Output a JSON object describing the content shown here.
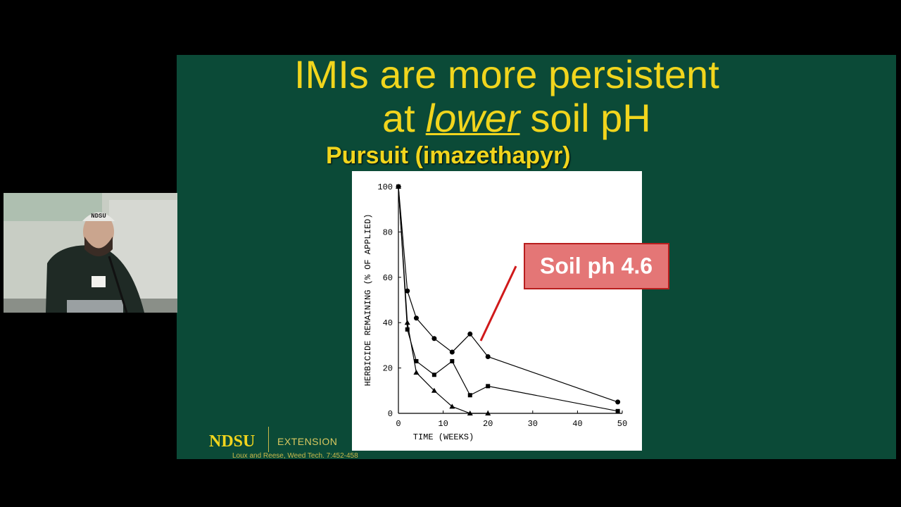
{
  "slide": {
    "title_line1": "IMIs are more persistent",
    "title_line2_a": "at",
    "title_line2_b": "lower",
    "title_line2_c": "soil pH",
    "subtitle": "Pursuit (imazethapyr)",
    "logo": "NDSU",
    "logo_unit": "EXTENSION",
    "citation": "Loux and Reese, Weed Tech. 7:452-458"
  },
  "webcam": {
    "cap_text": "NDSU"
  },
  "chart_data": {
    "type": "line",
    "x_label": "TIME (WEEKS)",
    "y_label": "HERBICIDE REMAINING (% OF APPLIED)",
    "xlim": [
      0,
      50
    ],
    "ylim": [
      0,
      100
    ],
    "xticks": [
      0,
      10,
      20,
      30,
      40,
      50
    ],
    "yticks": [
      0,
      20,
      40,
      60,
      80,
      100
    ],
    "grid": false,
    "series": [
      {
        "color": "#000000",
        "marker": "circle",
        "x": [
          0,
          2,
          4,
          8,
          12,
          16,
          20,
          49
        ],
        "values": [
          100,
          54,
          42,
          33,
          27,
          35,
          25,
          5
        ]
      },
      {
        "color": "#000000",
        "marker": "square",
        "x": [
          0,
          2,
          4,
          8,
          12,
          16,
          20,
          49
        ],
        "values": [
          100,
          37,
          23,
          17,
          23,
          8,
          12,
          1
        ]
      },
      {
        "color": "#000000",
        "marker": "triangle",
        "x": [
          0,
          2,
          4,
          8,
          12,
          16,
          20
        ],
        "values": [
          100,
          40,
          18,
          10,
          3,
          0,
          0
        ]
      }
    ],
    "annotation": "Soil ph 4.6"
  }
}
